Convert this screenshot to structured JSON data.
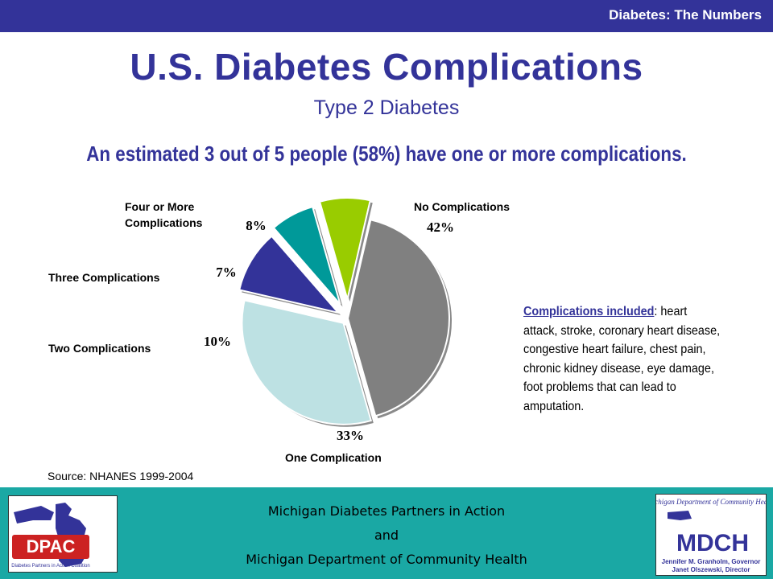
{
  "header": {
    "section_title": "Diabetes: The Numbers"
  },
  "title": "U.S. Diabetes Complications",
  "subtitle": "Type 2 Diabetes",
  "headline": "An estimated 3 out of 5 people (58%) have one or more complications.",
  "chart_data": {
    "type": "pie",
    "slices": [
      {
        "label": "No Complications",
        "value": 42,
        "value_label": "42%",
        "color": "#808080"
      },
      {
        "label": "One Complication",
        "value": 33,
        "value_label": "33%",
        "color": "#bde1e3"
      },
      {
        "label": "Two Complications",
        "value": 10,
        "value_label": "10%",
        "color": "#333399"
      },
      {
        "label": "Three Complications",
        "value": 7,
        "value_label": "7%",
        "color": "#009999"
      },
      {
        "label": "Four or More Complications",
        "value": 8,
        "value_label": "8%",
        "color": "#99cc00"
      }
    ]
  },
  "note": {
    "heading": "Complications included",
    "body": ": heart attack, stroke, coronary heart disease, congestive heart failure, chest pain, chronic kidney disease, eye damage, foot problems that can lead to amputation."
  },
  "source": "Source: NHANES 1999-2004",
  "footer": {
    "line1": "Michigan Diabetes Partners in Action",
    "line2": "and",
    "line3": "Michigan Department of Community Health",
    "left_logo_text": "DPAC",
    "left_logo_tagline": "Diabetes Partners in Action Coalition",
    "right_logo_title": "Michigan Department of Community Health",
    "right_logo_text": "MDCH",
    "right_logo_line1": "Jennifer M. Granholm, Governor",
    "right_logo_line2": "Janet Olszewski, Director"
  },
  "colors": {
    "brand": "#333399",
    "footer_bg": "#1aa8a4"
  }
}
